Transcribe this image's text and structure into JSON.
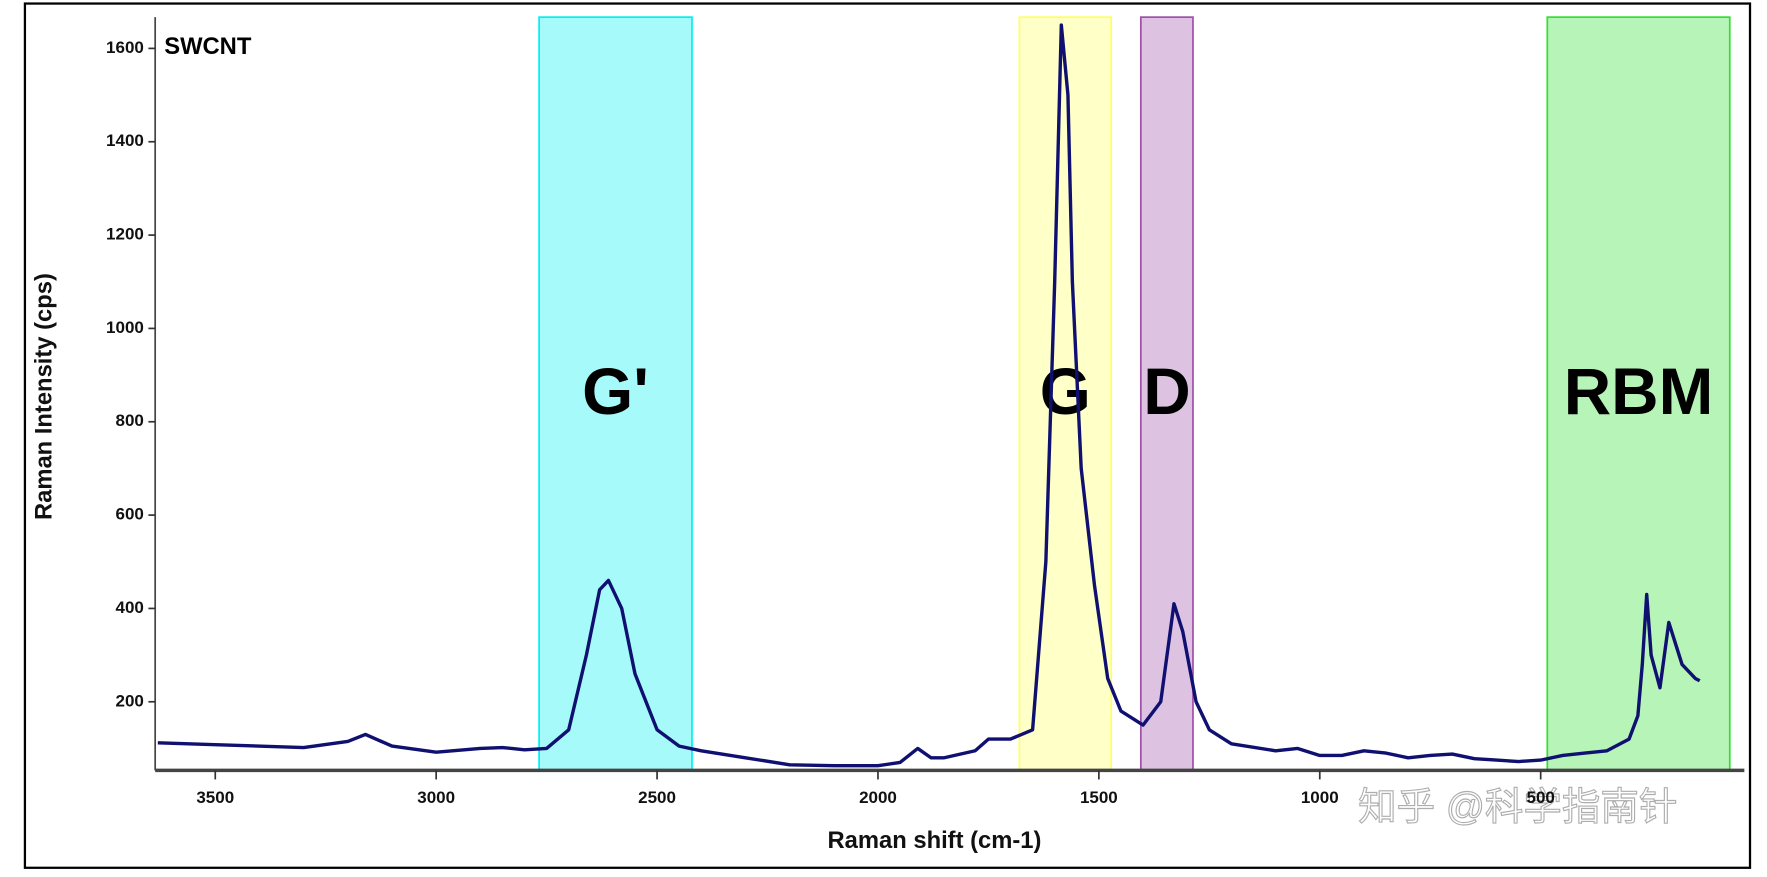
{
  "chart_data": {
    "type": "line",
    "title": "SWCNT",
    "x_label": "Raman shift (cm-1)",
    "y_label": "Raman Intensity (cps)",
    "watermark": "知乎 @科学指南针",
    "xlim": [
      3636,
      39
    ],
    "ylim": [
      53,
      1667
    ],
    "xticks": [
      3500,
      3000,
      2500,
      2000,
      1500,
      1000,
      500
    ],
    "yticks": [
      200,
      400,
      600,
      800,
      1000,
      1200,
      1400,
      1600
    ],
    "regions": [
      {
        "label": "G'",
        "xrange": [
          2767,
          2421
        ],
        "color": "#00f0f0"
      },
      {
        "label": "G",
        "xrange": [
          1680,
          1472
        ],
        "color": "#ffff60"
      },
      {
        "label": "D",
        "xrange": [
          1405,
          1287
        ],
        "color": "#a050a8"
      },
      {
        "label": "RBM",
        "xrange": [
          485,
          72
        ],
        "color": "#30e030"
      }
    ],
    "series": [
      {
        "name": "SWCNT",
        "color": "#101070",
        "x": [
          3630,
          3500,
          3300,
          3200,
          3160,
          3100,
          3000,
          2900,
          2850,
          2800,
          2750,
          2700,
          2660,
          2630,
          2610,
          2580,
          2550,
          2500,
          2450,
          2400,
          2300,
          2200,
          2100,
          2000,
          1950,
          1910,
          1880,
          1850,
          1780,
          1750,
          1700,
          1650,
          1620,
          1600,
          1585,
          1570,
          1560,
          1540,
          1510,
          1480,
          1450,
          1400,
          1360,
          1330,
          1310,
          1280,
          1250,
          1200,
          1100,
          1050,
          1000,
          950,
          900,
          850,
          800,
          750,
          700,
          650,
          600,
          550,
          500,
          450,
          400,
          350,
          300,
          280,
          270,
          260,
          250,
          230,
          220,
          210,
          200,
          180,
          150,
          140
        ],
        "values": [
          112,
          108,
          102,
          115,
          130,
          105,
          92,
          100,
          102,
          97,
          100,
          140,
          300,
          440,
          460,
          400,
          260,
          140,
          105,
          95,
          80,
          65,
          63,
          63,
          70,
          100,
          80,
          80,
          95,
          120,
          120,
          140,
          500,
          1100,
          1650,
          1500,
          1100,
          700,
          450,
          250,
          180,
          150,
          200,
          410,
          350,
          200,
          140,
          110,
          95,
          100,
          85,
          85,
          95,
          90,
          80,
          85,
          88,
          78,
          75,
          72,
          75,
          85,
          90,
          95,
          120,
          170,
          280,
          430,
          300,
          230,
          300,
          370,
          340,
          280,
          250,
          245
        ]
      }
    ]
  }
}
